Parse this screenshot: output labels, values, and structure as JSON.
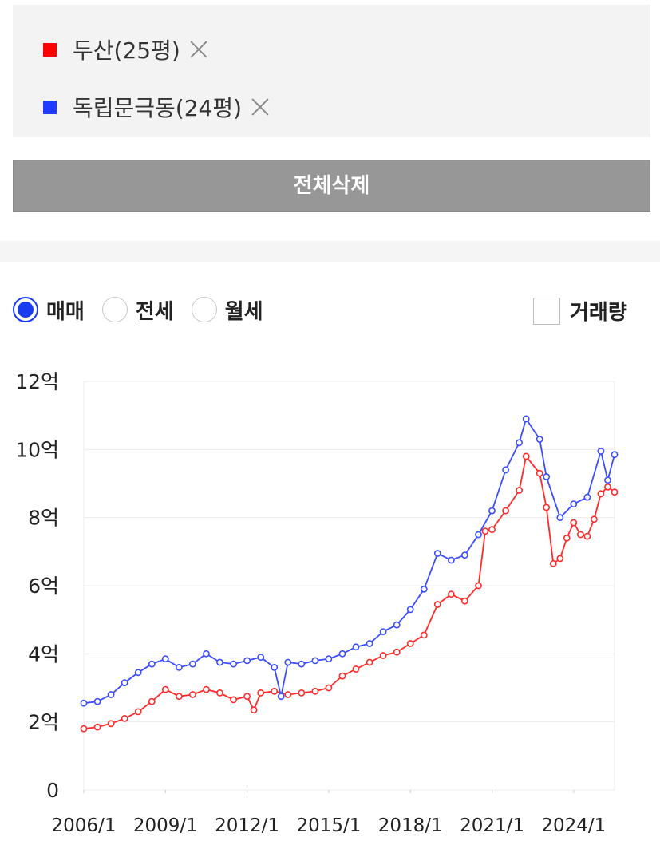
{
  "legend": {
    "items": [
      {
        "label": "두산(25평)",
        "color": "#ff0000"
      },
      {
        "label": "독립문극동(24평)",
        "color": "#1f3bff"
      }
    ]
  },
  "delete_all_label": "전체삭제",
  "filters": {
    "options": [
      {
        "label": "매매",
        "selected": true
      },
      {
        "label": "전세",
        "selected": false
      },
      {
        "label": "월세",
        "selected": false
      }
    ],
    "volume_label": "거래량",
    "volume_checked": false
  },
  "chart_data": {
    "type": "line",
    "x_start": "2006/1",
    "x_end": "2025/7",
    "x_ticks": [
      "2006/1",
      "2009/1",
      "2012/1",
      "2015/1",
      "2018/1",
      "2021/1",
      "2024/1"
    ],
    "y_ticks": [
      "0",
      "2억",
      "4억",
      "6억",
      "8억",
      "10억",
      "12억"
    ],
    "ylim": [
      0,
      12
    ],
    "y_unit": "억",
    "grid": true,
    "series": [
      {
        "name": "두산(25평)",
        "color": "#ff2a2a",
        "points": [
          [
            "2006/1",
            1.8
          ],
          [
            "2006/7",
            1.85
          ],
          [
            "2007/1",
            1.95
          ],
          [
            "2007/7",
            2.1
          ],
          [
            "2008/1",
            2.3
          ],
          [
            "2008/7",
            2.6
          ],
          [
            "2009/1",
            2.95
          ],
          [
            "2009/7",
            2.75
          ],
          [
            "2010/1",
            2.8
          ],
          [
            "2010/7",
            2.95
          ],
          [
            "2011/1",
            2.85
          ],
          [
            "2011/7",
            2.65
          ],
          [
            "2012/1",
            2.75
          ],
          [
            "2012/4",
            2.35
          ],
          [
            "2012/7",
            2.85
          ],
          [
            "2013/1",
            2.9
          ],
          [
            "2013/7",
            2.8
          ],
          [
            "2014/1",
            2.85
          ],
          [
            "2014/7",
            2.9
          ],
          [
            "2015/1",
            3.0
          ],
          [
            "2015/7",
            3.35
          ],
          [
            "2016/1",
            3.55
          ],
          [
            "2016/7",
            3.75
          ],
          [
            "2017/1",
            3.95
          ],
          [
            "2017/7",
            4.05
          ],
          [
            "2018/1",
            4.3
          ],
          [
            "2018/7",
            4.55
          ],
          [
            "2019/1",
            5.45
          ],
          [
            "2019/7",
            5.75
          ],
          [
            "2020/1",
            5.55
          ],
          [
            "2020/7",
            6.0
          ],
          [
            "2020/10",
            7.6
          ],
          [
            "2021/1",
            7.65
          ],
          [
            "2021/7",
            8.2
          ],
          [
            "2022/1",
            8.8
          ],
          [
            "2022/4",
            9.8
          ],
          [
            "2022/10",
            9.3
          ],
          [
            "2023/1",
            8.3
          ],
          [
            "2023/4",
            6.65
          ],
          [
            "2023/7",
            6.8
          ],
          [
            "2023/10",
            7.4
          ],
          [
            "2024/1",
            7.85
          ],
          [
            "2024/4",
            7.5
          ],
          [
            "2024/7",
            7.45
          ],
          [
            "2024/10",
            7.95
          ],
          [
            "2025/1",
            8.7
          ],
          [
            "2025/4",
            8.9
          ],
          [
            "2025/7",
            8.75
          ]
        ]
      },
      {
        "name": "독립문극동(24평)",
        "color": "#3b4dff",
        "points": [
          [
            "2006/1",
            2.55
          ],
          [
            "2006/7",
            2.6
          ],
          [
            "2007/1",
            2.8
          ],
          [
            "2007/7",
            3.15
          ],
          [
            "2008/1",
            3.45
          ],
          [
            "2008/7",
            3.7
          ],
          [
            "2009/1",
            3.85
          ],
          [
            "2009/7",
            3.6
          ],
          [
            "2010/1",
            3.7
          ],
          [
            "2010/7",
            4.0
          ],
          [
            "2011/1",
            3.75
          ],
          [
            "2011/7",
            3.7
          ],
          [
            "2012/1",
            3.8
          ],
          [
            "2012/7",
            3.9
          ],
          [
            "2013/1",
            3.6
          ],
          [
            "2013/4",
            2.75
          ],
          [
            "2013/7",
            3.75
          ],
          [
            "2014/1",
            3.7
          ],
          [
            "2014/7",
            3.8
          ],
          [
            "2015/1",
            3.85
          ],
          [
            "2015/7",
            4.0
          ],
          [
            "2016/1",
            4.2
          ],
          [
            "2016/7",
            4.3
          ],
          [
            "2017/1",
            4.65
          ],
          [
            "2017/7",
            4.85
          ],
          [
            "2018/1",
            5.3
          ],
          [
            "2018/7",
            5.9
          ],
          [
            "2019/1",
            6.95
          ],
          [
            "2019/7",
            6.75
          ],
          [
            "2020/1",
            6.9
          ],
          [
            "2020/7",
            7.5
          ],
          [
            "2021/1",
            8.2
          ],
          [
            "2021/7",
            9.4
          ],
          [
            "2022/1",
            10.2
          ],
          [
            "2022/4",
            10.9
          ],
          [
            "2022/10",
            10.3
          ],
          [
            "2023/1",
            9.2
          ],
          [
            "2023/7",
            8.0
          ],
          [
            "2024/1",
            8.4
          ],
          [
            "2024/7",
            8.6
          ],
          [
            "2025/1",
            9.95
          ],
          [
            "2025/4",
            9.1
          ],
          [
            "2025/7",
            9.85
          ]
        ]
      }
    ]
  }
}
